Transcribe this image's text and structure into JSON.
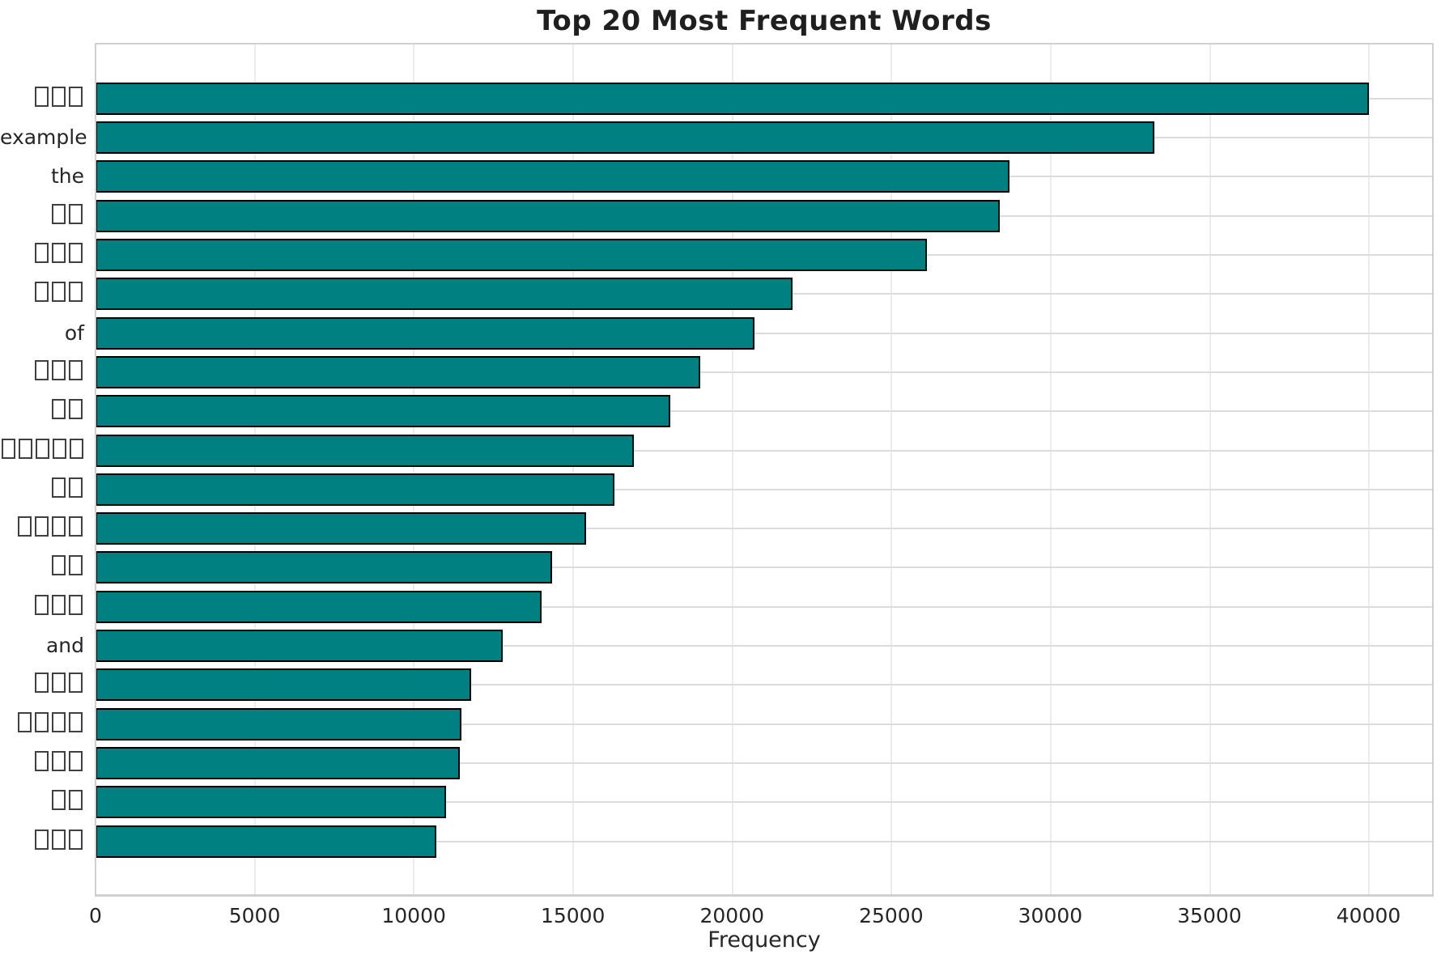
{
  "chart_data": {
    "type": "bar",
    "orientation": "horizontal",
    "title": "Top 20 Most Frequent Words",
    "xlabel": "Frequency",
    "ylabel": "",
    "categories": [
      "▯▯▯",
      "example",
      "the",
      "▯▯",
      "▯▯▯",
      "▯▯▯",
      "of",
      "▯▯▯",
      "▯▯",
      "▯▯▯▯▯",
      "▯▯",
      "▯▯▯▯",
      "▯▯",
      "▯▯▯",
      "and",
      "▯▯▯",
      "▯▯▯▯",
      "▯▯▯",
      "▯▯",
      "▯▯▯"
    ],
    "values": [
      40000,
      33250,
      28700,
      28400,
      26100,
      21900,
      20700,
      19000,
      18050,
      16900,
      16300,
      15400,
      14350,
      14000,
      12800,
      11800,
      11500,
      11450,
      11000,
      10700
    ],
    "xticks": [
      0,
      5000,
      10000,
      15000,
      20000,
      25000,
      30000,
      35000,
      40000
    ],
    "xlim": [
      0,
      42000
    ],
    "grid": true,
    "legend": false,
    "bar_color": "#008080",
    "bar_edge_color": "#000000",
    "label_note": "▯ glyphs are missing-glyph (tofu) boxes shown in place of non-Latin words"
  },
  "colors": {
    "background": "#ffffff",
    "bar_fill": "#008080",
    "bar_edge": "#000000",
    "grid_horizontal": "#dcdcdc",
    "grid_vertical": "#ececec",
    "spine": "#d0d0d0",
    "text": "#262626",
    "title_text": "#1f1f1f"
  }
}
